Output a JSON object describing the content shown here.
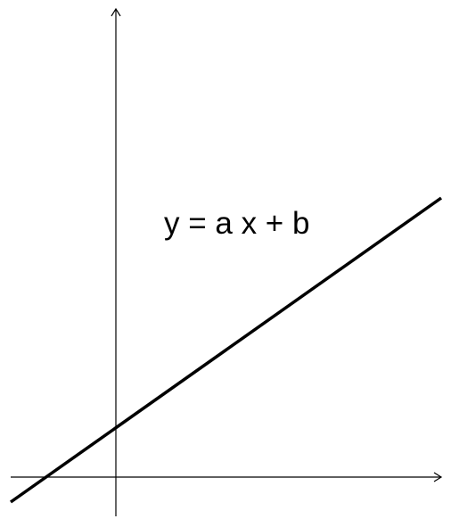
{
  "diagram": {
    "equation": "y = a x + b"
  },
  "colors": {
    "background": "#ffffff",
    "line": "#000000",
    "axes": "#000000"
  }
}
